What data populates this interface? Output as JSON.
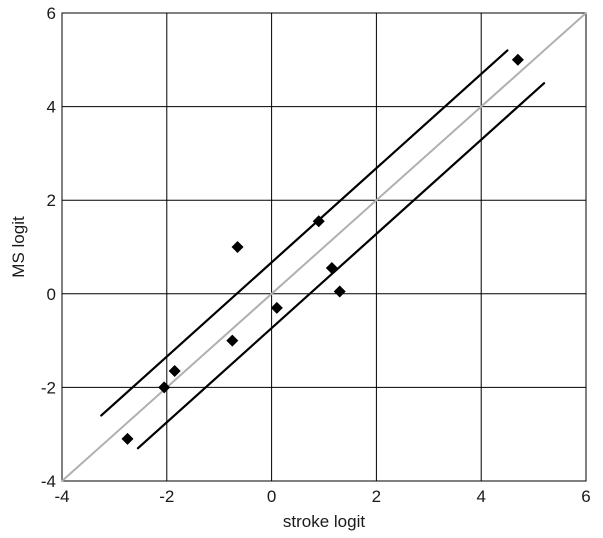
{
  "chart_data": {
    "type": "scatter",
    "xlabel": "stroke logit",
    "ylabel": "MS logit",
    "xlim": [
      -4,
      6
    ],
    "ylim": [
      -4,
      6
    ],
    "xticks": [
      -4,
      -2,
      0,
      2,
      4,
      6
    ],
    "yticks": [
      -4,
      -2,
      0,
      2,
      4,
      6
    ],
    "xtick_labels": [
      "-4",
      "-2",
      "0",
      "2",
      "4",
      "6"
    ],
    "ytick_labels": [
      "-4",
      "-2",
      "0",
      "2",
      "4",
      "6"
    ],
    "grid": true,
    "points": [
      {
        "x": -2.75,
        "y": -3.1
      },
      {
        "x": -2.05,
        "y": -2.0
      },
      {
        "x": -1.85,
        "y": -1.65
      },
      {
        "x": -0.75,
        "y": -1.0
      },
      {
        "x": -0.65,
        "y": 1.0
      },
      {
        "x": 0.1,
        "y": -0.3
      },
      {
        "x": 0.9,
        "y": 1.55
      },
      {
        "x": 1.15,
        "y": 0.55
      },
      {
        "x": 1.3,
        "y": 0.05
      },
      {
        "x": 4.7,
        "y": 5.0
      }
    ],
    "identity_line": {
      "x": [
        -4,
        6
      ],
      "y": [
        -4,
        6
      ],
      "color": "#b0b0b0"
    },
    "confidence_bands": [
      {
        "name": "upper",
        "x": [
          -3.25,
          4.5
        ],
        "y": [
          -2.6,
          5.2
        ]
      },
      {
        "name": "lower",
        "x": [
          -2.55,
          5.2
        ],
        "y": [
          -3.3,
          4.5
        ]
      }
    ],
    "colors": {
      "points": "#000000",
      "bands": "#000000",
      "grid": "#000000",
      "identity": "#b0b0b0"
    }
  }
}
